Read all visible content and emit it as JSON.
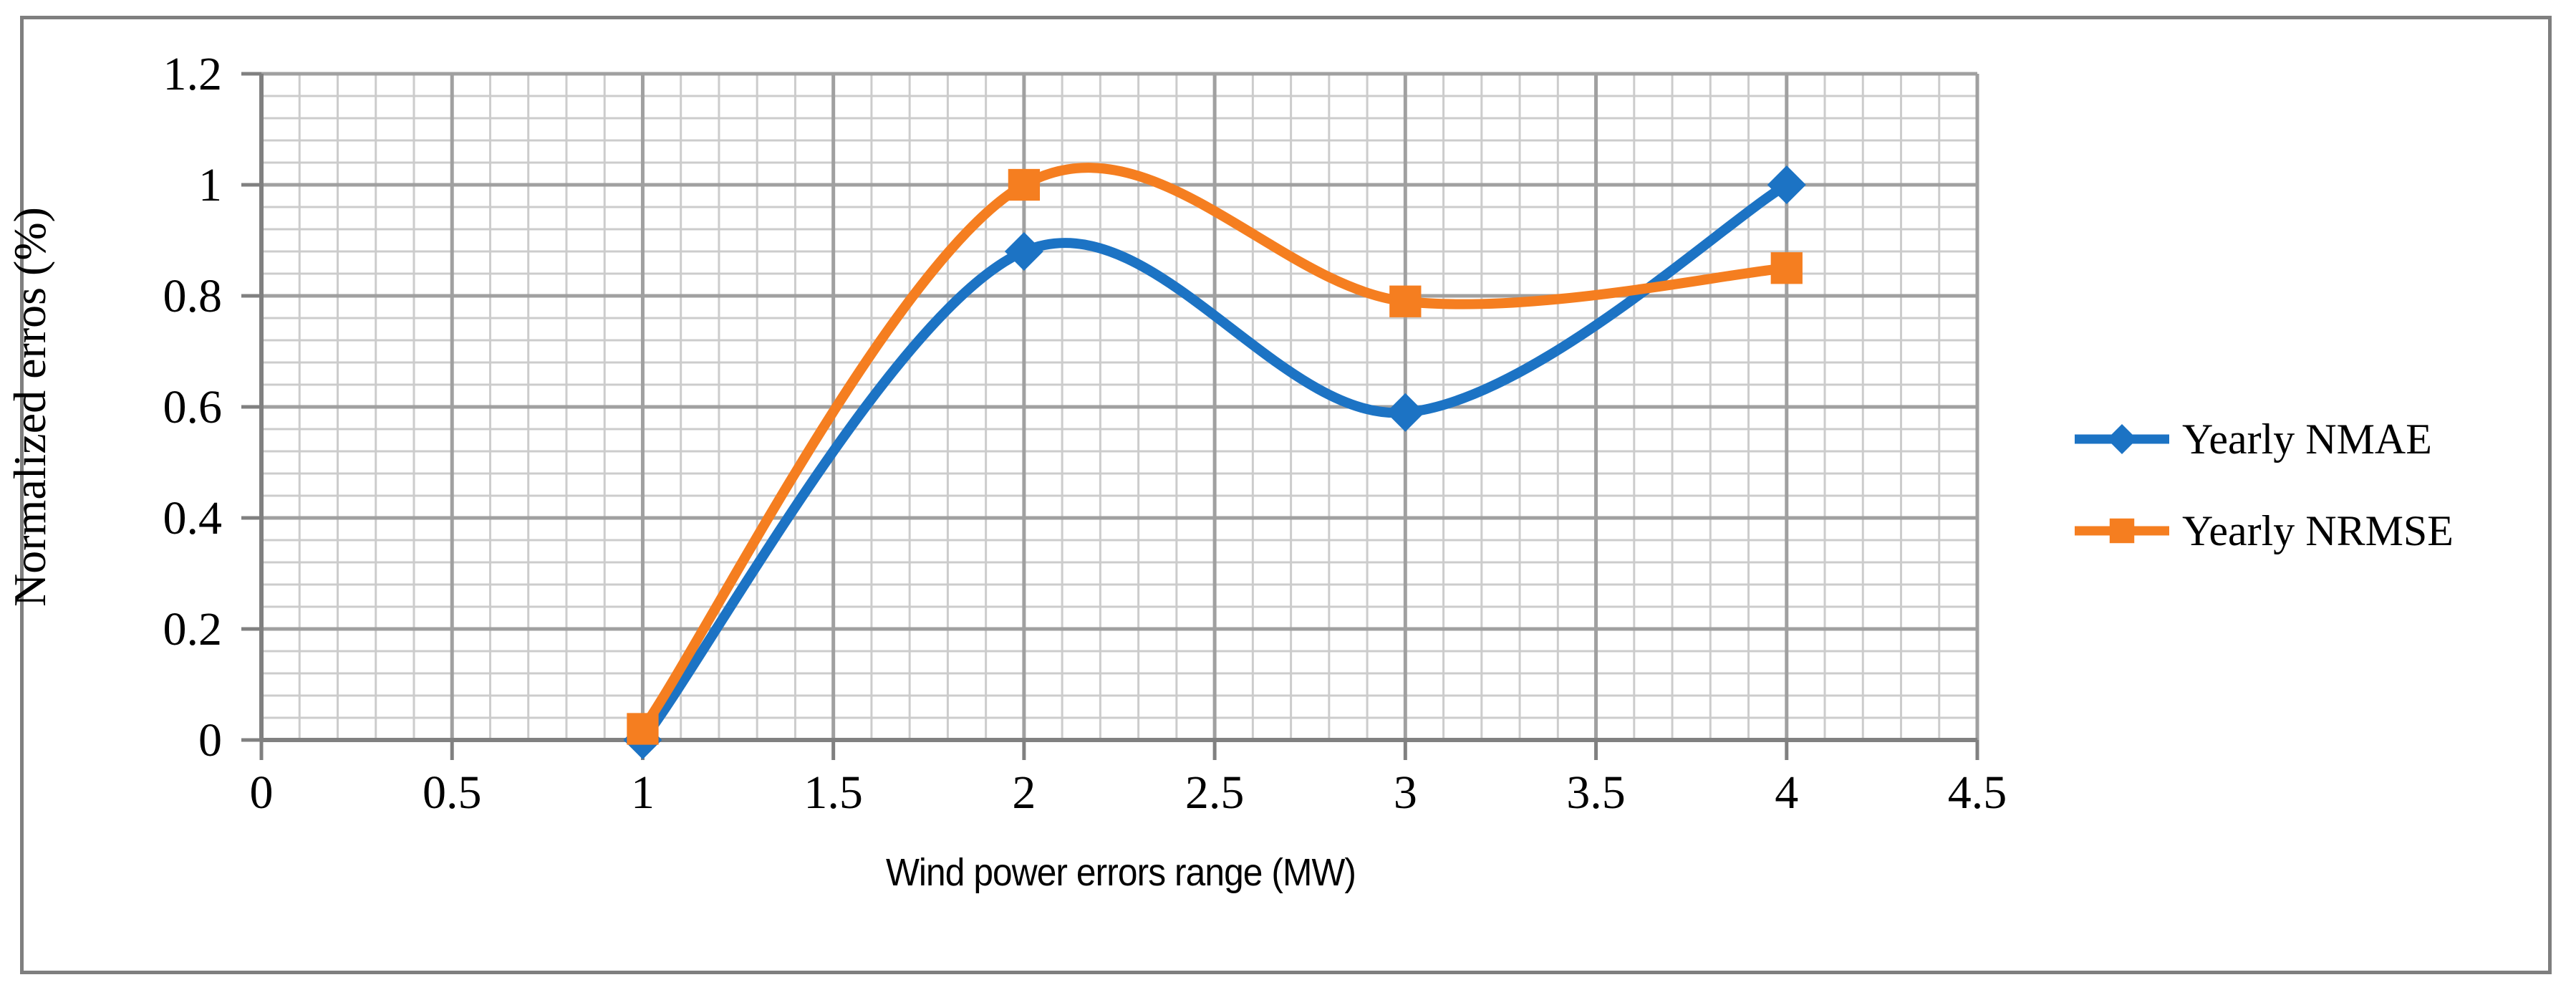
{
  "figure": {
    "background_color": "#ffffff",
    "border_color": "#7f7f7f",
    "y_axis": {
      "title": "Normalized erros (%)",
      "tick_labels": [
        "1.2",
        "1",
        "0.8",
        "0.6",
        "0.4",
        "0.2",
        "0"
      ],
      "tick_values": [
        1.2,
        1,
        0.8,
        0.6,
        0.4,
        0.2,
        0
      ],
      "min": 0,
      "max": 1.2,
      "major_unit": 0.2,
      "minor_unit": 0.04
    },
    "x_axis": {
      "title": "Wind power errors range (MW)",
      "tick_labels": [
        "0",
        "0.5",
        "1",
        "1.5",
        "2",
        "2.5",
        "3",
        "3.5",
        "4",
        "4.5"
      ],
      "tick_values": [
        0,
        0.5,
        1,
        1.5,
        2,
        2.5,
        3,
        3.5,
        4,
        4.5
      ],
      "min": 0,
      "max": 4.5,
      "major_unit": 0.5,
      "minor_unit": 0.1
    },
    "grid": {
      "major_color": "#a0a0a0",
      "minor_color": "#cccccc",
      "axis_color": "#808080"
    },
    "legend": {
      "position": "right-middle",
      "items": [
        {
          "label": "Yearly NMAE",
          "color": "#1c73c4",
          "marker": "diamond"
        },
        {
          "label": "Yearly NRMSE",
          "color": "#f57e20",
          "marker": "square"
        }
      ]
    }
  },
  "chart_data": {
    "type": "line",
    "smooth": true,
    "title": "",
    "xlabel": "Wind power errors range (MW)",
    "ylabel": "Normalized erros (%)",
    "x": [
      1,
      2,
      3,
      4
    ],
    "series": [
      {
        "name": "Yearly NMAE",
        "color": "#1c73c4",
        "marker": "diamond",
        "values": [
          0.0,
          0.88,
          0.59,
          1.0
        ]
      },
      {
        "name": "Yearly NRMSE",
        "color": "#f57e20",
        "marker": "square",
        "values": [
          0.02,
          1.0,
          0.79,
          0.85
        ]
      }
    ],
    "xlim": [
      0,
      4.5
    ],
    "ylim": [
      0,
      1.2
    ],
    "x_major_tick": 0.5,
    "x_minor_tick": 0.1,
    "y_major_tick": 0.2,
    "y_minor_tick": 0.04,
    "grid": "major+minor",
    "legend_position": "right"
  }
}
